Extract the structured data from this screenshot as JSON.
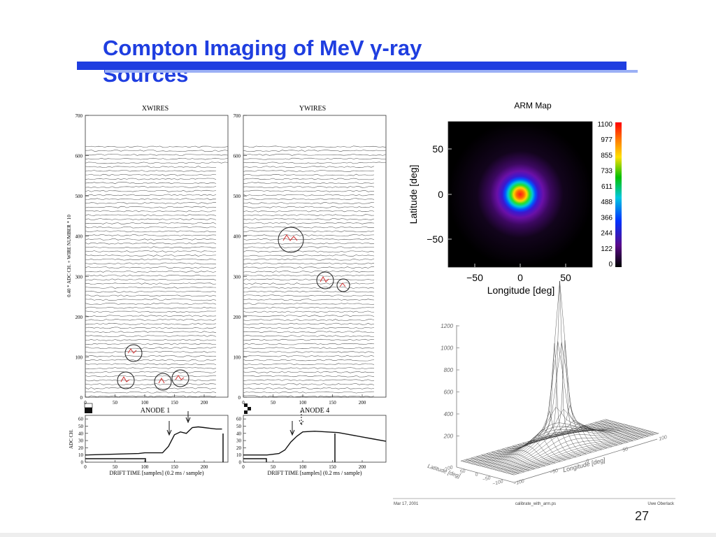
{
  "slide": {
    "title_line1": "Compton Imaging of MeV γ-ray",
    "title_line2": "Sources",
    "page_number": "27",
    "colors": {
      "title": "#1f3ee0",
      "bar": "#1f3ee0"
    }
  },
  "wire_panels": {
    "xwires": {
      "title": "XWIRES",
      "ylabel": "0.40 * ADC CH. + WIRE NUMBER * 10",
      "yticks": [
        "0",
        "100",
        "200",
        "300",
        "400",
        "500",
        "600",
        "700"
      ],
      "xticks": [
        "0",
        "50",
        "100",
        "150",
        "200"
      ],
      "ylim": [
        0,
        700
      ],
      "xlim": [
        0,
        240
      ]
    },
    "ywires": {
      "title": "YWIRES",
      "yticks": [
        "0",
        "100",
        "200",
        "300",
        "400",
        "500",
        "600",
        "700"
      ],
      "xticks": [
        "0",
        "50",
        "100",
        "150",
        "200"
      ],
      "ylim": [
        0,
        700
      ],
      "xlim": [
        0,
        240
      ]
    }
  },
  "anode_panels": {
    "anode1": {
      "title": "ANODE 1",
      "ylabel": "ADC CH.",
      "xlabel": "DRIFT TIME [samples]   (0.2 ms / sample)",
      "yticks": [
        "0",
        "10",
        "20",
        "30",
        "40",
        "50",
        "60"
      ],
      "xticks": [
        "0",
        "50",
        "100",
        "150",
        "200"
      ]
    },
    "anode4": {
      "title": "ANODE 4",
      "xlabel": "DRIFT TIME [samples]   (0.2 ms / sample)",
      "yticks": [
        "0",
        "10",
        "20",
        "30",
        "40",
        "50",
        "60"
      ],
      "xticks": [
        "0",
        "50",
        "100",
        "150",
        "200"
      ]
    }
  },
  "arm_map": {
    "title": "ARM Map",
    "xlabel": "Longitude [deg]",
    "ylabel": "Latitude [deg]",
    "xticks": [
      "−50",
      "0",
      "50"
    ],
    "yticks": [
      "50",
      "0",
      "−50"
    ],
    "colorbar_ticks": [
      "1100",
      "977",
      "855",
      "733",
      "611",
      "488",
      "366",
      "244",
      "122",
      "0"
    ]
  },
  "surface_plot": {
    "zticks": [
      "1200",
      "1000",
      "800",
      "600",
      "400",
      "200"
    ],
    "x_ticks": [
      "−100",
      "−50",
      "0",
      "50",
      "100"
    ],
    "y_ticks": [
      "−100",
      "−50",
      "0",
      "50",
      "100"
    ],
    "xlabel": "Longitude [deg]",
    "ylabel": "Latitude [deg]"
  },
  "footer": {
    "date": "Mar 17, 2001",
    "file": "calibrate_with_arm.ps",
    "author": "Uwe Oberlack"
  },
  "chart_data": [
    {
      "type": "line",
      "title": "XWIRES",
      "ylabel": "0.40 * ADC CH. + WIRE NUMBER * 10",
      "xlim": [
        0,
        240
      ],
      "ylim": [
        0,
        700
      ],
      "series": [],
      "grid": false
    },
    {
      "type": "line",
      "title": "YWIRES",
      "xlim": [
        0,
        240
      ],
      "ylim": [
        0,
        700
      ],
      "series": [],
      "grid": false
    },
    {
      "type": "line",
      "title": "ANODE 1",
      "xlabel": "DRIFT TIME [samples]   (0.2 ms / sample)",
      "ylabel": "ADC CH.",
      "ylim": [
        0,
        60
      ],
      "series": [
        {
          "x": [
            0,
            90,
            100,
            130,
            140,
            150,
            160,
            170,
            180,
            190,
            200,
            210,
            220,
            230
          ],
          "values": [
            10,
            12,
            13,
            13,
            22,
            38,
            42,
            40,
            48,
            49,
            48,
            47,
            46,
            46
          ]
        }
      ]
    },
    {
      "type": "line",
      "title": "ANODE 4",
      "xlabel": "DRIFT TIME [samples]   (0.2 ms / sample)",
      "ylim": [
        0,
        60
      ],
      "series": [
        {
          "x": [
            0,
            40,
            50,
            60,
            70,
            80,
            90,
            100,
            120,
            140,
            160,
            180,
            200,
            220,
            240
          ],
          "values": [
            10,
            10,
            11,
            12,
            17,
            28,
            36,
            42,
            43,
            42,
            41,
            38,
            35,
            32,
            29
          ]
        }
      ]
    },
    {
      "type": "heatmap",
      "title": "ARM Map",
      "xlabel": "Longitude [deg]",
      "ylabel": "Latitude [deg]",
      "xlim": [
        -80,
        80
      ],
      "ylim": [
        -80,
        80
      ],
      "colorbar_range": [
        0,
        1100
      ],
      "peak": {
        "x": 0,
        "y": 0,
        "value": 1100
      }
    },
    {
      "type": "area",
      "zlim": [
        0,
        1200
      ],
      "xlabel": "Longitude [deg]",
      "ylabel": "Latitude [deg]",
      "peak": {
        "x": 0,
        "y": 0,
        "value": 1100
      }
    }
  ]
}
